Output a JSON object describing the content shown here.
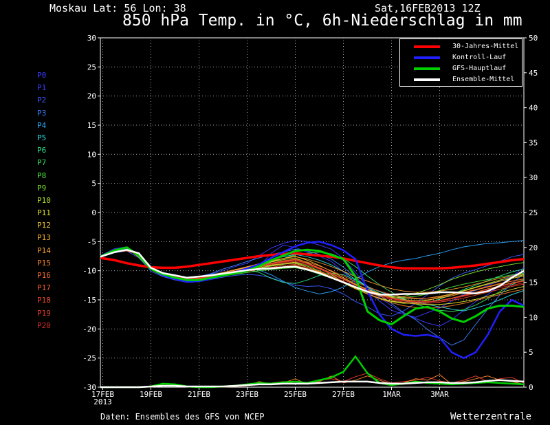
{
  "header": {
    "location": "Moskau   Lat: 56 Lon: 38",
    "run_time": "Sat,16FEB2013 12Z",
    "title": "850 hPa Temp. in °C, 6h-Niederschlag in mm"
  },
  "footer": {
    "source": "Daten: Ensembles des GFS von NCEP",
    "brand": "Wetterzentrale"
  },
  "members": [
    {
      "label": "P0",
      "color": "#3a3aff"
    },
    {
      "label": "P1",
      "color": "#3a3aff"
    },
    {
      "label": "P2",
      "color": "#3a5aff"
    },
    {
      "label": "P3",
      "color": "#3a80ff"
    },
    {
      "label": "P4",
      "color": "#2aa8ff"
    },
    {
      "label": "P5",
      "color": "#2ad8e0"
    },
    {
      "label": "P6",
      "color": "#2ae090"
    },
    {
      "label": "P7",
      "color": "#3ae060"
    },
    {
      "label": "P8",
      "color": "#4ae03a"
    },
    {
      "label": "P9",
      "color": "#7ae02a"
    },
    {
      "label": "P10",
      "color": "#b0e02a"
    },
    {
      "label": "P11",
      "color": "#e0e02a"
    },
    {
      "label": "P12",
      "color": "#f0c82a"
    },
    {
      "label": "P13",
      "color": "#f0b02a"
    },
    {
      "label": "P14",
      "color": "#f0982a"
    },
    {
      "label": "P15",
      "color": "#f0802a"
    },
    {
      "label": "P16",
      "color": "#f06a2a"
    },
    {
      "label": "P17",
      "color": "#f0582a"
    },
    {
      "label": "P18",
      "color": "#e8482a"
    },
    {
      "label": "P19",
      "color": "#e03a2a"
    },
    {
      "label": "P20",
      "color": "#d02a2a"
    }
  ],
  "chart_data": {
    "type": "line",
    "title": "850 hPa Temp. in °C, 6h-Niederschlag in mm",
    "x_ticks": [
      "17FEB\n2013",
      "19FEB",
      "21FEB",
      "23FEB",
      "25FEB",
      "27FEB",
      "1MAR",
      "3MAR"
    ],
    "x_range_days": [
      16.9,
      34.5
    ],
    "y_left": {
      "min": -30,
      "max": 30,
      "ticks": [
        -30,
        -25,
        -20,
        -15,
        -10,
        -5,
        0,
        5,
        10,
        15,
        20,
        25,
        30
      ],
      "unit": "°C"
    },
    "y_right": {
      "min": 0,
      "max": 50,
      "ticks": [
        0,
        5,
        10,
        15,
        20,
        25,
        30,
        35,
        40,
        45,
        50
      ],
      "unit": "mm"
    },
    "grid": true,
    "legend_position": "top-right",
    "legend": [
      {
        "label": "30-Jahres-Mittel",
        "color": "#ff0000"
      },
      {
        "label": "Kontroll-Lauf",
        "color": "#2020ff"
      },
      {
        "label": "GFS-Hauptlauf",
        "color": "#00d000"
      },
      {
        "label": "Ensemble-Mittel",
        "color": "#ffffff"
      }
    ],
    "days": [
      16.9,
      17.5,
      18,
      18.5,
      19,
      19.5,
      20,
      20.5,
      21,
      21.5,
      22,
      22.5,
      23,
      23.5,
      24,
      24.5,
      25,
      25.5,
      26,
      26.5,
      27,
      27.5,
      28,
      28.5,
      29,
      29.5,
      30,
      30.5,
      31,
      31.5,
      32,
      32.5,
      33,
      33.5,
      34,
      34.5
    ],
    "series": [
      {
        "name": "30-Jahres-Mittel",
        "color": "#ff0000",
        "width": 3.5,
        "values": [
          -7.8,
          -8.2,
          -8.7,
          -9.1,
          -9.4,
          -9.5,
          -9.5,
          -9.3,
          -9.0,
          -8.7,
          -8.4,
          -8.1,
          -7.8,
          -7.5,
          -7.3,
          -7.1,
          -7.0,
          -7.2,
          -7.4,
          -7.6,
          -7.9,
          -8.3,
          -8.7,
          -9.1,
          -9.4,
          -9.6,
          -9.6,
          -9.6,
          -9.6,
          -9.5,
          -9.3,
          -9.1,
          -8.8,
          -8.5,
          -8.2,
          -8.0
        ]
      },
      {
        "name": "Ensemble-Mittel",
        "color": "#ffffff",
        "width": 2.5,
        "values": [
          -7.6,
          -6.8,
          -6.4,
          -7.0,
          -9.5,
          -10.4,
          -10.8,
          -11.2,
          -11.0,
          -10.8,
          -10.5,
          -10.2,
          -9.9,
          -9.7,
          -9.6,
          -9.4,
          -9.3,
          -9.8,
          -10.4,
          -11.2,
          -12.0,
          -12.8,
          -13.6,
          -14.1,
          -14.1,
          -14.0,
          -14.0,
          -13.9,
          -13.7,
          -13.7,
          -13.8,
          -13.9,
          -13.5,
          -12.6,
          -11.2,
          -10.0
        ]
      },
      {
        "name": "Kontroll-Lauf",
        "color": "#2020ff",
        "width": 2.5,
        "values": [
          -7.6,
          -6.6,
          -6.3,
          -7.2,
          -9.6,
          -10.8,
          -11.4,
          -11.9,
          -11.8,
          -11.4,
          -10.8,
          -10.2,
          -9.6,
          -8.9,
          -7.8,
          -6.8,
          -5.8,
          -5.2,
          -5.0,
          -5.6,
          -6.5,
          -8.0,
          -13.5,
          -17.5,
          -20.0,
          -21.0,
          -21.2,
          -21.0,
          -21.5,
          -24.0,
          -25.0,
          -24.0,
          -21.0,
          -17.0,
          -15.0,
          -16.0
        ]
      },
      {
        "name": "GFS-Hauptlauf",
        "color": "#00d000",
        "width": 3,
        "values": [
          -7.6,
          -6.5,
          -6.0,
          -7.4,
          -9.7,
          -10.6,
          -11.2,
          -11.6,
          -11.6,
          -11.2,
          -10.8,
          -10.4,
          -10.0,
          -9.2,
          -8.2,
          -7.4,
          -6.6,
          -6.4,
          -6.6,
          -7.3,
          -8.0,
          -11.0,
          -17.0,
          -18.5,
          -19.2,
          -17.8,
          -16.5,
          -16.2,
          -17.0,
          -18.2,
          -18.8,
          -17.8,
          -16.5,
          -16.0,
          -16.0,
          -16.2
        ]
      }
    ],
    "members_temp": [
      [
        -7.6,
        -6.7,
        -6.3,
        -7.0,
        -9.8,
        -10.9,
        -11.3,
        -11.6,
        -11.4,
        -11.0,
        -10.6,
        -10.3,
        -10.1,
        -9.2,
        -7.0,
        -5.6,
        -6.0,
        -6.8,
        -7.5,
        -8.4,
        -10.2,
        -12.1,
        -13.5,
        -15.2,
        -16.8,
        -17.5,
        -18.0,
        -17.2,
        -16.4,
        -15.2,
        -14.0,
        -13.4,
        -12.5,
        -11.8,
        -10.8,
        -10.2
      ],
      [
        -7.4,
        -6.2,
        -5.9,
        -7.3,
        -9.2,
        -10.5,
        -11.0,
        -11.5,
        -11.2,
        -10.6,
        -10.0,
        -9.3,
        -8.7,
        -7.4,
        -6.1,
        -5.3,
        -4.8,
        -5.0,
        -5.6,
        -6.3,
        -7.9,
        -10.3,
        -12.7,
        -14.6,
        -16.0,
        -17.3,
        -18.2,
        -19.0,
        -19.5,
        -18.4,
        -16.8,
        -15.3,
        -14.1,
        -12.5,
        -11.0,
        -9.4
      ],
      [
        -7.7,
        -6.9,
        -6.6,
        -7.8,
        -10.1,
        -11.0,
        -11.6,
        -12.0,
        -11.9,
        -11.5,
        -11.1,
        -10.8,
        -10.6,
        -10.8,
        -11.2,
        -11.9,
        -12.5,
        -12.7,
        -12.6,
        -13.1,
        -14.0,
        -15.3,
        -16.2,
        -17.4,
        -17.8,
        -16.9,
        -15.6,
        -14.1,
        -12.6,
        -11.3,
        -10.4,
        -9.8,
        -9.1,
        -8.4,
        -7.6,
        -7.2
      ],
      [
        -7.5,
        -6.4,
        -6.1,
        -7.4,
        -9.5,
        -10.4,
        -10.9,
        -11.3,
        -11.0,
        -10.5,
        -9.7,
        -9.1,
        -8.4,
        -7.8,
        -7.2,
        -6.8,
        -6.3,
        -6.6,
        -7.2,
        -8.0,
        -9.4,
        -11.1,
        -12.9,
        -14.2,
        -15.6,
        -17.2,
        -18.4,
        -20.1,
        -21.5,
        -22.8,
        -21.9,
        -19.2,
        -16.6,
        -14.2,
        -12.2,
        -10.5
      ],
      [
        -7.6,
        -6.6,
        -6.2,
        -7.6,
        -9.7,
        -10.8,
        -11.1,
        -11.4,
        -11.2,
        -10.9,
        -10.5,
        -10.1,
        -9.7,
        -9.9,
        -10.7,
        -11.8,
        -12.9,
        -13.5,
        -14.0,
        -13.6,
        -12.8,
        -11.5,
        -10.2,
        -9.3,
        -8.6,
        -8.2,
        -7.9,
        -7.4,
        -7.0,
        -6.4,
        -5.9,
        -5.6,
        -5.3,
        -5.2,
        -5.0,
        -4.8
      ],
      [
        -7.6,
        -6.5,
        -6.0,
        -7.5,
        -9.6,
        -10.6,
        -11.2,
        -11.6,
        -11.3,
        -10.9,
        -10.4,
        -9.9,
        -9.5,
        -8.8,
        -8.1,
        -7.6,
        -7.2,
        -7.6,
        -8.2,
        -9.0,
        -10.1,
        -11.5,
        -12.7,
        -13.6,
        -14.3,
        -14.9,
        -15.4,
        -15.8,
        -16.2,
        -16.6,
        -16.9,
        -16.4,
        -15.8,
        -15.0,
        -14.1,
        -13.4
      ],
      [
        -7.6,
        -6.8,
        -6.5,
        -7.2,
        -9.4,
        -10.5,
        -11.0,
        -11.4,
        -11.3,
        -10.9,
        -10.6,
        -10.2,
        -9.8,
        -10.3,
        -11.3,
        -12.0,
        -12.2,
        -11.6,
        -10.8,
        -10.4,
        -10.7,
        -11.6,
        -12.8,
        -13.9,
        -14.7,
        -15.2,
        -15.5,
        -15.4,
        -14.9,
        -14.1,
        -13.2,
        -12.5,
        -11.7,
        -10.9,
        -10.2,
        -9.7
      ],
      [
        -7.6,
        -6.4,
        -6.2,
        -7.5,
        -9.5,
        -10.7,
        -11.1,
        -11.6,
        -11.5,
        -11.1,
        -10.7,
        -10.2,
        -9.8,
        -9.2,
        -8.5,
        -7.9,
        -7.3,
        -7.0,
        -6.8,
        -7.1,
        -7.9,
        -9.3,
        -10.9,
        -12.4,
        -13.7,
        -14.8,
        -15.7,
        -16.4,
        -16.8,
        -17.0,
        -16.7,
        -15.9,
        -14.8,
        -13.6,
        -12.4,
        -11.5
      ],
      [
        -7.6,
        -6.7,
        -6.3,
        -7.1,
        -9.3,
        -10.4,
        -11.0,
        -11.5,
        -11.4,
        -11.2,
        -10.9,
        -10.6,
        -10.3,
        -10.0,
        -9.8,
        -9.6,
        -9.5,
        -9.9,
        -10.6,
        -11.3,
        -12.0,
        -12.9,
        -13.6,
        -14.1,
        -14.5,
        -14.6,
        -14.4,
        -14.0,
        -13.4,
        -12.8,
        -12.3,
        -11.9,
        -11.5,
        -11.1,
        -10.7,
        -10.4
      ],
      [
        -7.6,
        -6.6,
        -6.4,
        -7.4,
        -9.6,
        -10.8,
        -11.3,
        -11.8,
        -11.6,
        -11.3,
        -10.9,
        -10.5,
        -10.0,
        -9.6,
        -9.2,
        -8.9,
        -8.6,
        -9.2,
        -10.0,
        -10.9,
        -11.9,
        -12.9,
        -13.8,
        -14.3,
        -14.6,
        -14.4,
        -13.9,
        -13.2,
        -12.4,
        -11.5,
        -10.8,
        -10.2,
        -9.7,
        -9.3,
        -8.9,
        -8.6
      ],
      [
        -7.6,
        -6.5,
        -6.1,
        -7.7,
        -9.8,
        -10.9,
        -11.2,
        -11.4,
        -11.1,
        -10.7,
        -10.3,
        -9.8,
        -9.4,
        -9.0,
        -8.5,
        -8.1,
        -7.8,
        -8.6,
        -9.6,
        -10.7,
        -11.9,
        -13.0,
        -14.0,
        -14.8,
        -15.3,
        -15.6,
        -15.5,
        -15.1,
        -14.6,
        -14.0,
        -13.4,
        -12.8,
        -12.2,
        -11.6,
        -11.1,
        -10.7
      ],
      [
        -7.6,
        -6.8,
        -6.5,
        -7.3,
        -9.6,
        -10.6,
        -11.1,
        -11.5,
        -11.4,
        -11.0,
        -10.6,
        -10.1,
        -9.6,
        -9.3,
        -9.0,
        -8.8,
        -8.7,
        -9.4,
        -10.2,
        -11.1,
        -12.1,
        -13.1,
        -14.0,
        -14.7,
        -15.2,
        -15.5,
        -15.7,
        -15.8,
        -15.8,
        -15.6,
        -15.3,
        -14.9,
        -14.4,
        -13.8,
        -13.2,
        -12.7
      ],
      [
        -7.6,
        -6.6,
        -6.2,
        -7.5,
        -9.5,
        -10.5,
        -11.1,
        -11.6,
        -11.3,
        -10.9,
        -10.4,
        -9.9,
        -9.4,
        -8.9,
        -8.4,
        -7.9,
        -7.5,
        -8.2,
        -9.1,
        -10.1,
        -11.2,
        -12.3,
        -13.2,
        -13.9,
        -14.4,
        -14.7,
        -14.8,
        -14.7,
        -14.4,
        -14.0,
        -13.5,
        -12.9,
        -12.3,
        -11.8,
        -11.3,
        -10.9
      ],
      [
        -7.6,
        -6.7,
        -6.4,
        -7.3,
        -9.5,
        -10.6,
        -11.2,
        -11.7,
        -11.5,
        -11.1,
        -10.7,
        -10.3,
        -9.9,
        -9.5,
        -9.1,
        -8.8,
        -8.5,
        -9.0,
        -9.7,
        -10.5,
        -11.4,
        -12.4,
        -13.3,
        -14.0,
        -14.6,
        -15.0,
        -15.1,
        -15.0,
        -14.7,
        -14.3,
        -13.8,
        -13.3,
        -12.8,
        -12.3,
        -11.8,
        -11.4
      ],
      [
        -7.6,
        -6.5,
        -6.1,
        -7.6,
        -9.7,
        -10.7,
        -11.2,
        -11.5,
        -11.2,
        -10.8,
        -10.3,
        -9.8,
        -9.3,
        -8.8,
        -8.3,
        -7.9,
        -7.6,
        -8.0,
        -8.6,
        -9.3,
        -10.1,
        -11.0,
        -11.8,
        -12.5,
        -13.1,
        -13.5,
        -13.7,
        -13.7,
        -13.5,
        -13.2,
        -12.8,
        -12.3,
        -11.8,
        -11.3,
        -10.9,
        -10.6
      ],
      [
        -7.6,
        -6.8,
        -6.6,
        -7.2,
        -9.4,
        -10.5,
        -11.0,
        -11.4,
        -11.3,
        -11.0,
        -10.7,
        -10.4,
        -10.1,
        -9.8,
        -9.5,
        -9.3,
        -9.1,
        -9.6,
        -10.3,
        -11.1,
        -12.0,
        -13.0,
        -14.0,
        -14.8,
        -15.5,
        -16.0,
        -16.3,
        -16.4,
        -16.3,
        -16.0,
        -15.6,
        -15.1,
        -14.6,
        -14.1,
        -13.6,
        -13.2
      ],
      [
        -7.6,
        -6.6,
        -6.3,
        -7.4,
        -9.6,
        -10.7,
        -11.2,
        -11.6,
        -11.4,
        -11.0,
        -10.6,
        -10.1,
        -9.7,
        -9.2,
        -8.8,
        -8.4,
        -8.1,
        -8.7,
        -9.5,
        -10.4,
        -11.4,
        -12.4,
        -13.3,
        -14.1,
        -14.7,
        -15.1,
        -15.3,
        -15.3,
        -15.1,
        -14.7,
        -14.2,
        -13.7,
        -13.1,
        -12.6,
        -12.1,
        -11.7
      ],
      [
        -7.6,
        -6.7,
        -6.2,
        -7.5,
        -9.6,
        -10.6,
        -11.1,
        -11.5,
        -11.3,
        -10.9,
        -10.5,
        -10.0,
        -9.5,
        -9.1,
        -8.7,
        -8.3,
        -8.0,
        -8.5,
        -9.2,
        -10.0,
        -10.9,
        -11.9,
        -12.8,
        -13.5,
        -14.1,
        -14.5,
        -14.7,
        -14.7,
        -14.5,
        -14.1,
        -13.7,
        -13.2,
        -12.7,
        -12.2,
        -11.8,
        -11.4
      ],
      [
        -7.6,
        -6.6,
        -6.4,
        -7.3,
        -9.5,
        -10.6,
        -11.2,
        -11.6,
        -11.5,
        -11.1,
        -10.8,
        -10.4,
        -10.0,
        -9.7,
        -9.4,
        -9.1,
        -8.9,
        -9.4,
        -10.1,
        -10.9,
        -11.8,
        -12.8,
        -13.7,
        -14.4,
        -15.0,
        -15.4,
        -15.6,
        -15.6,
        -15.4,
        -15.1,
        -14.7,
        -14.2,
        -13.7,
        -13.2,
        -12.7,
        -12.3
      ],
      [
        -7.6,
        -6.5,
        -6.2,
        -7.6,
        -9.7,
        -10.8,
        -11.3,
        -11.7,
        -11.4,
        -11.0,
        -10.5,
        -10.0,
        -9.6,
        -9.2,
        -8.8,
        -8.5,
        -8.2,
        -8.8,
        -9.6,
        -10.5,
        -11.5,
        -12.5,
        -13.4,
        -14.2,
        -14.8,
        -15.2,
        -15.4,
        -15.4,
        -15.2,
        -14.8,
        -14.3,
        -13.8,
        -13.2,
        -12.7,
        -12.2,
        -11.8
      ],
      [
        -7.6,
        -6.7,
        -6.3,
        -7.2,
        -9.4,
        -10.5,
        -11.0,
        -11.4,
        -11.2,
        -10.8,
        -10.4,
        -10.0,
        -9.6,
        -9.2,
        -8.9,
        -8.6,
        -8.4,
        -9.0,
        -9.7,
        -10.6,
        -11.5,
        -12.5,
        -13.4,
        -14.1,
        -14.7,
        -15.1,
        -15.3,
        -15.3,
        -15.1,
        -14.8,
        -14.4,
        -13.9,
        -13.4,
        -12.9,
        -12.5,
        -12.1
      ]
    ],
    "precip_mm": [
      [
        0,
        0,
        0,
        0,
        0.1,
        0.3,
        0.2,
        0.1,
        0,
        0,
        0.1,
        0.2,
        0.3,
        0.5,
        0.6,
        0.8,
        0.5,
        0.6,
        1.0,
        1.2,
        0.8,
        1.5,
        2.0,
        1.2,
        0.6,
        0.8,
        1.0,
        1.4,
        0.9,
        0.6,
        1.0,
        1.6,
        0.8,
        1.2,
        1.4,
        0.6
      ],
      [
        0,
        0,
        0,
        0,
        0,
        0.2,
        0.3,
        0.1,
        0,
        0,
        0,
        0.1,
        0.2,
        0.8,
        0.4,
        0.6,
        1.2,
        0.4,
        0.8,
        1.6,
        0.6,
        1.0,
        1.6,
        1.0,
        0.4,
        0.6,
        1.2,
        1.0,
        1.8,
        0.4,
        0.8,
        1.2,
        1.6,
        1.0,
        0.8,
        0.4
      ]
    ],
    "precip_main_mm": [
      0,
      0,
      0,
      0,
      0.1,
      0.5,
      0.4,
      0.1,
      0,
      0,
      0.1,
      0.2,
      0.4,
      0.6,
      0.5,
      0.7,
      0.8,
      0.6,
      1.0,
      1.4,
      2.2,
      4.4,
      2.0,
      0.6,
      0.3,
      0.5,
      0.8,
      0.6,
      0.5,
      0.4,
      0.5,
      0.6,
      0.7,
      0.6,
      0.5,
      0.4
    ],
    "precip_mean_mm": [
      0,
      0,
      0,
      0,
      0.1,
      0.2,
      0.2,
      0.1,
      0.1,
      0.1,
      0.1,
      0.2,
      0.3,
      0.4,
      0.4,
      0.5,
      0.5,
      0.5,
      0.6,
      0.7,
      0.8,
      0.8,
      0.8,
      0.6,
      0.5,
      0.5,
      0.6,
      0.7,
      0.7,
      0.6,
      0.6,
      0.7,
      0.9,
      1.0,
      0.9,
      0.8
    ]
  }
}
